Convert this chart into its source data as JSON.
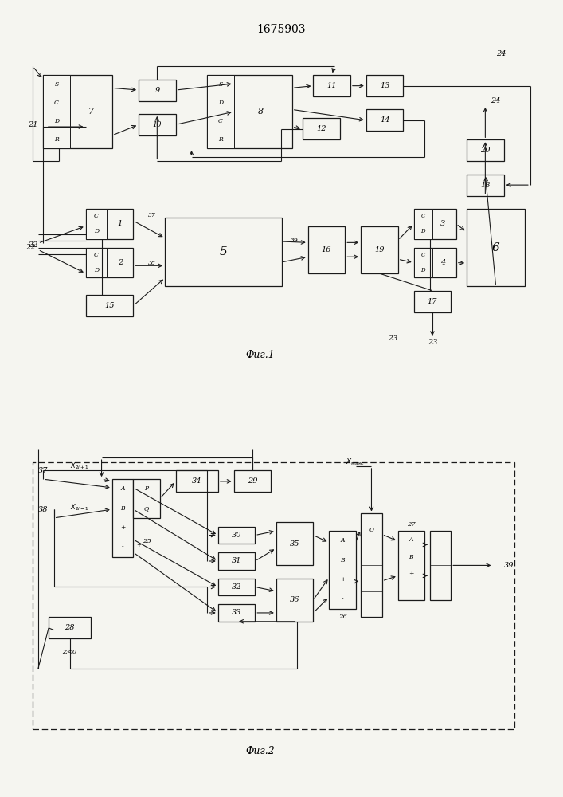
{
  "title": "1675903",
  "fig1_label": "Фиг.1",
  "fig2_label": "Фиг.2",
  "bg_color": "#f5f5f0",
  "line_color": "#1a1a1a",
  "box_color": "#f5f5f0",
  "font_size": 7
}
